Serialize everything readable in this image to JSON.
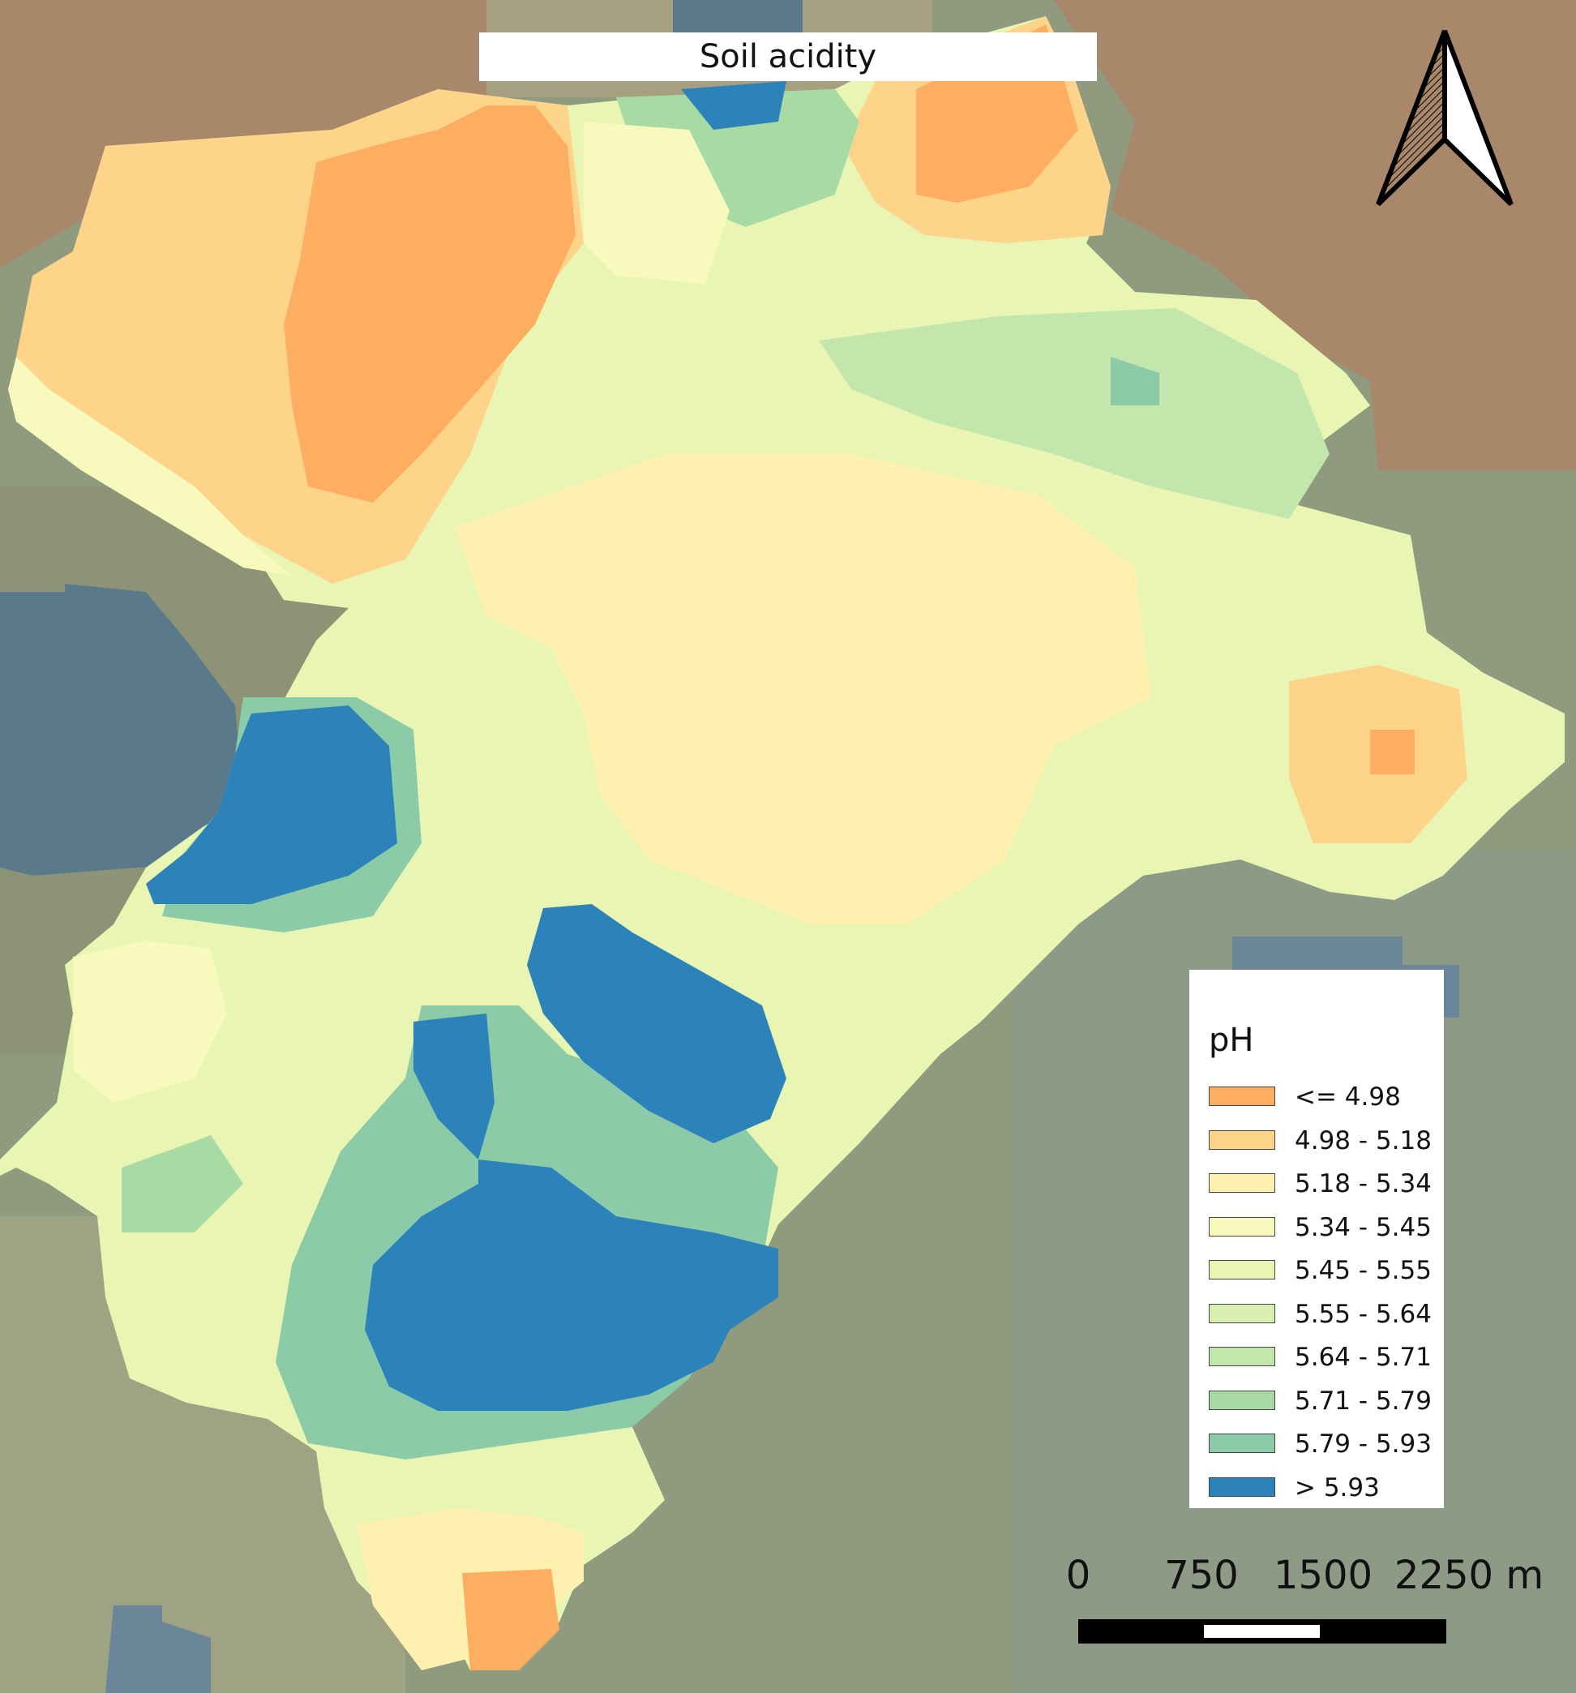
{
  "title": "Soil acidity",
  "north_arrow": {
    "label": "north-arrow"
  },
  "legend": {
    "title": "pH",
    "items": [
      {
        "label": "<= 4.98",
        "color": "#fdae61"
      },
      {
        "label": "4.98 - 5.18",
        "color": "#fed48a"
      },
      {
        "label": "5.18 - 5.34",
        "color": "#fef1b0"
      },
      {
        "label": "5.34 - 5.45",
        "color": "#f8f9bd"
      },
      {
        "label": "5.45 - 5.55",
        "color": "#e8f5b3"
      },
      {
        "label": "5.55 - 5.64",
        "color": "#d9efb1"
      },
      {
        "label": "5.64 - 5.71",
        "color": "#c3e6ad"
      },
      {
        "label": "5.71 - 5.79",
        "color": "#a8dba4"
      },
      {
        "label": "5.79 - 5.93",
        "color": "#8ccba8"
      },
      {
        "label": "> 5.93",
        "color": "#2b83ba"
      }
    ]
  },
  "scale_bar": {
    "labels": [
      "0",
      "750",
      "1500",
      "2250 m"
    ]
  },
  "colors": {
    "background_terrain": "#8f9a7e",
    "brown_terrain": "#a8876a",
    "dark_blue_terrain": "#5a7a8c"
  }
}
